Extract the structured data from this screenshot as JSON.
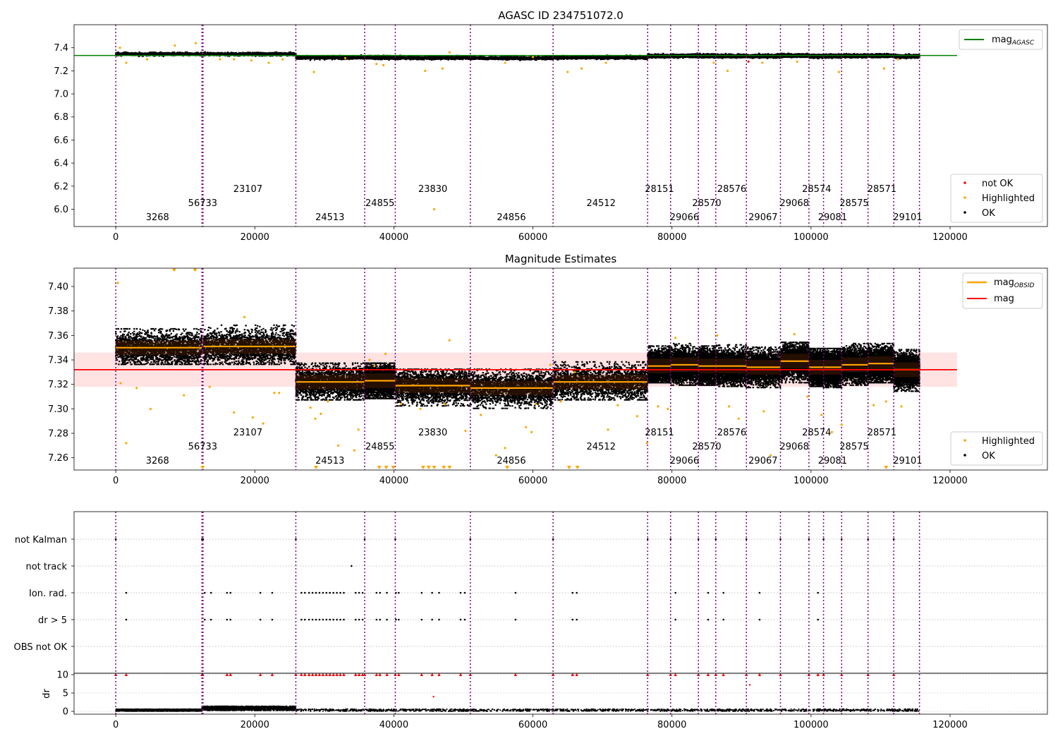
{
  "figure": {
    "background": "#ffffff"
  },
  "obsid_boundaries": [
    0,
    12400,
    12550,
    25900,
    35800,
    40200,
    51000,
    62900,
    76500,
    79800,
    83800,
    86300,
    90700,
    95600,
    99700,
    101800,
    104400,
    108200,
    111900,
    115600
  ],
  "obsid_labels": [
    {
      "text": "3268",
      "x": 6000,
      "row": 0
    },
    {
      "text": "56733",
      "x": 12500,
      "row": 1
    },
    {
      "text": "23107",
      "x": 19000,
      "row": 2
    },
    {
      "text": "24513",
      "x": 30800,
      "row": 0
    },
    {
      "text": "24855",
      "x": 38000,
      "row": 1
    },
    {
      "text": "23830",
      "x": 45600,
      "row": 2
    },
    {
      "text": "24856",
      "x": 56900,
      "row": 0
    },
    {
      "text": "24512",
      "x": 69800,
      "row": 1
    },
    {
      "text": "28151",
      "x": 78200,
      "row": 2
    },
    {
      "text": "29066",
      "x": 81800,
      "row": 0
    },
    {
      "text": "28570",
      "x": 85000,
      "row": 1
    },
    {
      "text": "28576",
      "x": 88600,
      "row": 2
    },
    {
      "text": "29067",
      "x": 93100,
      "row": 0
    },
    {
      "text": "29068",
      "x": 97600,
      "row": 1
    },
    {
      "text": "28574",
      "x": 100800,
      "row": 2
    },
    {
      "text": "29081",
      "x": 103100,
      "row": 0
    },
    {
      "text": "28575",
      "x": 106200,
      "row": 1
    },
    {
      "text": "28571",
      "x": 110200,
      "row": 2
    },
    {
      "text": "29101",
      "x": 113900,
      "row": 0
    }
  ],
  "chart_data": [
    {
      "type": "scatter",
      "title": "AGASC ID 234751072.0",
      "xlim": [
        -6000,
        134000
      ],
      "ylim": [
        5.85,
        7.6
      ],
      "xticks": [
        0,
        20000,
        40000,
        60000,
        80000,
        100000,
        120000
      ],
      "yticks": [
        6.0,
        6.2,
        6.4,
        6.6,
        6.8,
        7.0,
        7.2,
        7.4
      ],
      "ytick_labels": [
        "6.0",
        "6.2",
        "6.4",
        "6.6",
        "6.8",
        "7.0",
        "7.2",
        "7.4"
      ],
      "grid": false,
      "reference_line": {
        "name": "mag",
        "subscript": "AGASC",
        "value": 7.333,
        "x_range": [
          -6000,
          121000
        ],
        "color": "#008000"
      },
      "segments": [
        {
          "x0": 0,
          "x1": 12400,
          "mean": 7.352
        },
        {
          "x0": 12550,
          "x1": 25900,
          "mean": 7.352
        },
        {
          "x0": 25900,
          "x1": 35800,
          "mean": 7.322
        },
        {
          "x0": 35800,
          "x1": 40200,
          "mean": 7.323
        },
        {
          "x0": 40200,
          "x1": 51000,
          "mean": 7.319
        },
        {
          "x0": 51000,
          "x1": 62900,
          "mean": 7.317
        },
        {
          "x0": 62900,
          "x1": 76500,
          "mean": 7.322
        },
        {
          "x0": 76500,
          "x1": 79800,
          "mean": 7.335
        },
        {
          "x0": 79800,
          "x1": 83800,
          "mean": 7.336
        },
        {
          "x0": 83800,
          "x1": 86300,
          "mean": 7.335
        },
        {
          "x0": 86300,
          "x1": 90700,
          "mean": 7.335
        },
        {
          "x0": 90700,
          "x1": 95600,
          "mean": 7.334
        },
        {
          "x0": 95600,
          "x1": 99700,
          "mean": 7.339
        },
        {
          "x0": 99700,
          "x1": 101800,
          "mean": 7.334
        },
        {
          "x0": 101800,
          "x1": 104400,
          "mean": 7.334
        },
        {
          "x0": 104400,
          "x1": 108200,
          "mean": 7.336
        },
        {
          "x0": 108200,
          "x1": 111900,
          "mean": 7.337
        },
        {
          "x0": 111900,
          "x1": 115600,
          "mean": 7.332
        }
      ],
      "series": [
        {
          "name": "not OK",
          "color": "#ff0000",
          "points": [
            [
              91000,
              7.28
            ]
          ]
        },
        {
          "name": "Highlighted",
          "color": "#ffa500",
          "points": [
            [
              600,
              7.4
            ],
            [
              1500,
              7.27
            ],
            [
              4500,
              7.3
            ],
            [
              8500,
              7.42
            ],
            [
              11500,
              7.44
            ],
            [
              15000,
              7.3
            ],
            [
              17000,
              7.3
            ],
            [
              19500,
              7.29
            ],
            [
              22000,
              7.27
            ],
            [
              24000,
              7.3
            ],
            [
              28500,
              7.19
            ],
            [
              33000,
              7.31
            ],
            [
              37500,
              7.26
            ],
            [
              38500,
              7.25
            ],
            [
              44500,
              7.2
            ],
            [
              45800,
              6.0
            ],
            [
              47000,
              7.22
            ],
            [
              48000,
              7.36
            ],
            [
              56000,
              7.27
            ],
            [
              60000,
              7.32
            ],
            [
              65000,
              7.19
            ],
            [
              67000,
              7.22
            ],
            [
              70500,
              7.27
            ],
            [
              86000,
              7.27
            ],
            [
              88000,
              7.2
            ],
            [
              93000,
              7.27
            ],
            [
              98000,
              7.28
            ],
            [
              104000,
              7.19
            ],
            [
              110500,
              7.22
            ],
            [
              112500,
              7.3
            ]
          ]
        },
        {
          "name": "OK",
          "color": "#000000",
          "points": []
        }
      ],
      "legend_top": {
        "position": "top-right"
      },
      "legend_bottom": {
        "position": "bottom-right",
        "entries": [
          "not OK",
          "Highlighted",
          "OK"
        ]
      }
    },
    {
      "type": "scatter",
      "title": "Magnitude Estimates",
      "xlim": [
        -6000,
        134000
      ],
      "ylim": [
        7.25,
        7.415
      ],
      "xticks": [
        0,
        20000,
        40000,
        60000,
        80000,
        100000,
        120000
      ],
      "yticks": [
        7.26,
        7.28,
        7.3,
        7.32,
        7.34,
        7.36,
        7.38,
        7.4
      ],
      "ytick_labels": [
        "7.26",
        "7.28",
        "7.30",
        "7.32",
        "7.34",
        "7.36",
        "7.38",
        "7.40"
      ],
      "grid": false,
      "mag_line": {
        "name": "mag",
        "value": 7.332,
        "x_range": [
          -6000,
          121000
        ],
        "color": "#ff0000"
      },
      "mag_band": {
        "low": 7.318,
        "high": 7.346,
        "color": "#ffdede"
      },
      "obsid_legend": {
        "name": "mag",
        "subscript": "OBSID",
        "color": "#ffa500"
      },
      "segments": [
        {
          "x0": 0,
          "x1": 12400,
          "mean": 7.35,
          "spread": 0.006,
          "lo": 7.337,
          "hi": 7.366
        },
        {
          "x0": 12550,
          "x1": 25900,
          "mean": 7.351,
          "spread": 0.006,
          "lo": 7.337,
          "hi": 7.369
        },
        {
          "x0": 25900,
          "x1": 35800,
          "mean": 7.322,
          "spread": 0.006,
          "lo": 7.308,
          "hi": 7.338
        },
        {
          "x0": 35800,
          "x1": 40200,
          "mean": 7.323,
          "spread": 0.006,
          "lo": 7.309,
          "hi": 7.338
        },
        {
          "x0": 40200,
          "x1": 51000,
          "mean": 7.319,
          "spread": 0.006,
          "lo": 7.303,
          "hi": 7.333
        },
        {
          "x0": 51000,
          "x1": 62900,
          "mean": 7.317,
          "spread": 0.006,
          "lo": 7.301,
          "hi": 7.333
        },
        {
          "x0": 62900,
          "x1": 76500,
          "mean": 7.322,
          "spread": 0.006,
          "lo": 7.308,
          "hi": 7.339
        },
        {
          "x0": 76500,
          "x1": 79800,
          "mean": 7.335,
          "spread": 0.006,
          "lo": 7.322,
          "hi": 7.352
        },
        {
          "x0": 79800,
          "x1": 83800,
          "mean": 7.336,
          "spread": 0.006,
          "lo": 7.32,
          "hi": 7.354
        },
        {
          "x0": 83800,
          "x1": 86300,
          "mean": 7.335,
          "spread": 0.006,
          "lo": 7.32,
          "hi": 7.352
        },
        {
          "x0": 86300,
          "x1": 90700,
          "mean": 7.335,
          "spread": 0.006,
          "lo": 7.319,
          "hi": 7.353
        },
        {
          "x0": 90700,
          "x1": 95600,
          "mean": 7.334,
          "spread": 0.006,
          "lo": 7.318,
          "hi": 7.351
        },
        {
          "x0": 95600,
          "x1": 99700,
          "mean": 7.339,
          "spread": 0.006,
          "lo": 7.322,
          "hi": 7.355
        },
        {
          "x0": 99700,
          "x1": 101800,
          "mean": 7.334,
          "spread": 0.006,
          "lo": 7.319,
          "hi": 7.35
        },
        {
          "x0": 101800,
          "x1": 104400,
          "mean": 7.334,
          "spread": 0.006,
          "lo": 7.318,
          "hi": 7.35
        },
        {
          "x0": 104400,
          "x1": 108200,
          "mean": 7.336,
          "spread": 0.006,
          "lo": 7.32,
          "hi": 7.354
        },
        {
          "x0": 108200,
          "x1": 111900,
          "mean": 7.337,
          "spread": 0.006,
          "lo": 7.322,
          "hi": 7.354
        },
        {
          "x0": 111900,
          "x1": 115600,
          "mean": 7.332,
          "spread": 0.006,
          "lo": 7.315,
          "hi": 7.349
        }
      ],
      "series": [
        {
          "name": "Highlighted",
          "color": "#ffa500",
          "points": [
            [
              300,
              7.403
            ],
            [
              700,
              7.321
            ],
            [
              1500,
              7.272
            ],
            [
              3000,
              7.317
            ],
            [
              5000,
              7.3
            ],
            [
              9800,
              7.311
            ],
            [
              13500,
              7.318
            ],
            [
              17000,
              7.297
            ],
            [
              18500,
              7.375
            ],
            [
              19700,
              7.293
            ],
            [
              21200,
              7.288
            ],
            [
              22800,
              7.313
            ],
            [
              23500,
              7.313
            ],
            [
              28000,
              7.301
            ],
            [
              28700,
              7.292
            ],
            [
              29500,
              7.296
            ],
            [
              30500,
              7.306
            ],
            [
              32000,
              7.27
            ],
            [
              34300,
              7.266
            ],
            [
              34900,
              7.283
            ],
            [
              36500,
              7.34
            ],
            [
              37200,
              7.335
            ],
            [
              38800,
              7.345
            ],
            [
              41000,
              7.304
            ],
            [
              43800,
              7.3
            ],
            [
              47300,
              7.304
            ],
            [
              48000,
              7.356
            ],
            [
              50300,
              7.282
            ],
            [
              52500,
              7.295
            ],
            [
              54700,
              7.262
            ],
            [
              56000,
              7.268
            ],
            [
              59000,
              7.285
            ],
            [
              59800,
              7.281
            ],
            [
              60400,
              7.304
            ],
            [
              62500,
              7.336
            ],
            [
              64000,
              7.306
            ],
            [
              66000,
              7.33
            ],
            [
              70800,
              7.283
            ],
            [
              72200,
              7.303
            ],
            [
              75000,
              7.294
            ],
            [
              76400,
              7.272
            ],
            [
              78000,
              7.302
            ],
            [
              79400,
              7.3
            ],
            [
              80500,
              7.358
            ],
            [
              86500,
              7.36
            ],
            [
              88200,
              7.302
            ],
            [
              89600,
              7.292
            ],
            [
              93200,
              7.298
            ],
            [
              94200,
              7.262
            ],
            [
              97600,
              7.361
            ],
            [
              99500,
              7.31
            ],
            [
              101500,
              7.295
            ],
            [
              103000,
              7.281
            ],
            [
              104400,
              7.287
            ],
            [
              109000,
              7.303
            ],
            [
              110800,
              7.306
            ],
            [
              113000,
              7.302
            ]
          ]
        },
        {
          "name": "OK",
          "color": "#000000",
          "points": []
        }
      ],
      "out_of_range_markers": [
        8400,
        11400,
        12500,
        28800,
        37900,
        38900,
        39900,
        44200,
        45000,
        45800,
        47200,
        48000,
        56300,
        65200,
        66400,
        110800
      ],
      "legend_top": {
        "position": "top-right"
      },
      "legend_bottom": {
        "position": "bottom-right",
        "entries": [
          "Highlighted",
          "OK"
        ]
      }
    },
    {
      "type": "scatter",
      "title": "",
      "xlim": [
        -6000,
        134000
      ],
      "flag_rows": [
        "not Kalman",
        "not track",
        "Ion. rad.",
        "dr > 5",
        "OBS not OK"
      ],
      "flags": {
        "not Kalman": [
          0,
          12400,
          12450,
          12500,
          12550,
          25900,
          35800,
          40200,
          51000,
          62900,
          76500,
          79800,
          83800,
          86300,
          90700,
          95600,
          99700,
          101800,
          104400,
          108200,
          111900
        ],
        "not track": [
          33900
        ],
        "Ion. rad.": [
          1500,
          12800,
          13700,
          16000,
          16500,
          20800,
          22500,
          26700,
          27200,
          27800,
          28300,
          28800,
          29300,
          29800,
          30300,
          30800,
          31300,
          31800,
          32300,
          32800,
          34500,
          35000,
          35500,
          37500,
          38000,
          39000,
          40300,
          40700,
          44000,
          45500,
          46500,
          49600,
          50200,
          57500,
          65700,
          66300,
          80500,
          85200,
          87400,
          92600,
          101000
        ],
        "dr > 5": [
          1500,
          12800,
          13700,
          16000,
          16500,
          20800,
          22500,
          26700,
          27200,
          27800,
          28300,
          28800,
          29300,
          29800,
          30300,
          30800,
          31300,
          31800,
          32300,
          32800,
          34500,
          35000,
          35500,
          37500,
          38000,
          39000,
          40300,
          40700,
          44000,
          45500,
          46500,
          49600,
          50200,
          57500,
          65700,
          66300,
          80500,
          85200,
          87400,
          92600,
          101000
        ],
        "OBS not OK": []
      },
      "dr_axis": {
        "label": "dr",
        "ylim": [
          0,
          10
        ],
        "yticks": [
          0,
          5,
          10
        ],
        "ytick_labels": [
          "0",
          "5",
          "10"
        ]
      },
      "dr_saturated_x": [
        0,
        1500,
        12400,
        12500,
        16000,
        16500,
        20800,
        22500,
        25900,
        26700,
        27200,
        27800,
        28300,
        28800,
        29300,
        29800,
        30300,
        30800,
        31300,
        31800,
        32300,
        32800,
        34500,
        35000,
        35500,
        35800,
        37500,
        38000,
        39000,
        40200,
        40700,
        44000,
        45500,
        46500,
        49600,
        51000,
        57500,
        62900,
        65700,
        66300,
        76500,
        79800,
        80500,
        83800,
        85200,
        86300,
        87400,
        90700,
        92600,
        95600,
        99700,
        101000,
        101800,
        104400,
        108200,
        111900
      ],
      "dr_outliers": [
        [
          45700,
          4.0
        ],
        [
          91200,
          7.2
        ]
      ],
      "dr_baseline": [
        {
          "x0": 0,
          "x1": 12400,
          "dr": 0.5
        },
        {
          "x0": 12400,
          "x1": 25900,
          "dr": 1.0
        },
        {
          "x0": 25900,
          "x1": 115600,
          "dr": 0.5
        }
      ],
      "xticks": [
        0,
        20000,
        40000,
        60000,
        80000,
        100000,
        120000
      ]
    }
  ]
}
